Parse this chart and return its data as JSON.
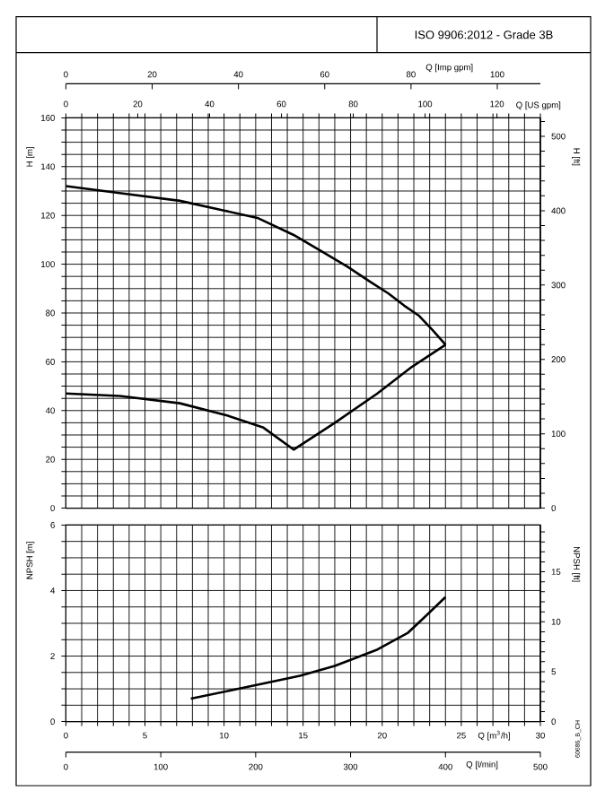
{
  "chart_data": [
    {
      "type": "line",
      "title": "ISO 9906:2012 - Grade 3B",
      "ylabel": "H [m]",
      "y2label": "H [ft]",
      "xlabel": "Q [US gpm]",
      "x2label": "Q [Imp gpm]",
      "xlim": [
        0,
        132.09
      ],
      "ylim": [
        0,
        160
      ],
      "y2lim": [
        0,
        524.9
      ],
      "x2lim": [
        0,
        109.99
      ],
      "grid": true,
      "xticks": [
        0,
        {
          "value": 4.403,
          "label": null
        },
        {
          "value": 8.806,
          "label": null
        },
        {
          "value": 13.209,
          "label": null
        },
        {
          "value": 17.612,
          "label": null
        },
        20,
        {
          "value": 22.015,
          "label": null
        },
        {
          "value": 26.418,
          "label": null
        },
        {
          "value": 30.821,
          "label": null
        },
        {
          "value": 35.224,
          "label": null
        },
        {
          "value": 39.627,
          "label": null
        },
        40,
        {
          "value": 44.03,
          "label": null
        },
        {
          "value": 48.433,
          "label": null
        },
        {
          "value": 52.836,
          "label": null
        },
        {
          "value": 57.239,
          "label": null
        },
        60,
        {
          "value": 61.642,
          "label": null
        },
        {
          "value": 66.045,
          "label": null
        },
        {
          "value": 70.448,
          "label": null
        },
        {
          "value": 74.851,
          "label": null
        },
        {
          "value": 79.254,
          "label": null
        },
        80,
        {
          "value": 83.657,
          "label": null
        },
        {
          "value": 88.06,
          "label": null
        },
        {
          "value": 92.463,
          "label": null
        },
        {
          "value": 96.866,
          "label": null
        },
        100,
        {
          "value": 101.269,
          "label": null
        },
        {
          "value": 105.672,
          "label": null
        },
        {
          "value": 110.075,
          "label": null
        },
        {
          "value": 114.478,
          "label": null
        },
        {
          "value": 118.881,
          "label": null
        },
        120,
        {
          "value": 123.284,
          "label": null
        },
        {
          "value": 127.687,
          "label": null
        },
        {
          "value": 132.09,
          "label": null
        }
      ],
      "yticks": [
        0,
        {
          "value": 5,
          "label": null
        },
        {
          "value": 10,
          "label": null
        },
        {
          "value": 15,
          "label": null
        },
        20,
        {
          "value": 25,
          "label": null
        },
        {
          "value": 30,
          "label": null
        },
        {
          "value": 35,
          "label": null
        },
        40,
        {
          "value": 45,
          "label": null
        },
        {
          "value": 50,
          "label": null
        },
        {
          "value": 55,
          "label": null
        },
        60,
        {
          "value": 65,
          "label": null
        },
        {
          "value": 70,
          "label": null
        },
        {
          "value": 75,
          "label": null
        },
        80,
        {
          "value": 85,
          "label": null
        },
        {
          "value": 90,
          "label": null
        },
        {
          "value": 95,
          "label": null
        },
        100,
        {
          "value": 105,
          "label": null
        },
        {
          "value": 110,
          "label": null
        },
        {
          "value": 115,
          "label": null
        },
        120,
        {
          "value": 125,
          "label": null
        },
        {
          "value": 130,
          "label": null
        },
        {
          "value": 135,
          "label": null
        },
        140,
        {
          "value": 145,
          "label": null
        },
        {
          "value": 150,
          "label": null
        },
        {
          "value": 155,
          "label": null
        },
        160
      ],
      "y2ticks": [
        0,
        {
          "value": 20,
          "label": null
        },
        {
          "value": 40,
          "label": null
        },
        {
          "value": 60,
          "label": null
        },
        {
          "value": 80,
          "label": null
        },
        100,
        {
          "value": 120,
          "label": null
        },
        {
          "value": 140,
          "label": null
        },
        {
          "value": 160,
          "label": null
        },
        {
          "value": 180,
          "label": null
        },
        200,
        {
          "value": 220,
          "label": null
        },
        {
          "value": 240,
          "label": null
        },
        {
          "value": 260,
          "label": null
        },
        {
          "value": 280,
          "label": null
        },
        300,
        {
          "value": 320,
          "label": null
        },
        {
          "value": 340,
          "label": null
        },
        {
          "value": 360,
          "label": null
        },
        {
          "value": 380,
          "label": null
        },
        400,
        {
          "value": 420,
          "label": null
        },
        {
          "value": 440,
          "label": null
        },
        {
          "value": 460,
          "label": null
        },
        {
          "value": 480,
          "label": null
        },
        500,
        {
          "value": 520,
          "label": null
        }
      ],
      "x2ticks": [
        0,
        20,
        40,
        60,
        80,
        100
      ],
      "series": [
        {
          "color": "#000000",
          "x": [
            0,
            15.9,
            31.7,
            44.0,
            53.3,
            63.4,
            70.4,
            78.4,
            84.5,
            89.8,
            94.2,
            98.2,
            102.1,
            105.7
          ],
          "values": [
            132,
            129,
            126,
            122,
            119,
            112,
            106,
            99,
            93,
            88,
            83,
            79,
            73,
            67
          ]
        },
        {
          "color": "#000000",
          "x": [
            0,
            15.0,
            31.7,
            44.9,
            55.0,
            63.4,
            74.9,
            86.7,
            96.4,
            105.7
          ],
          "values": [
            47,
            46,
            43,
            38,
            33,
            24,
            35,
            47,
            58,
            67
          ]
        }
      ]
    },
    {
      "type": "line",
      "ylabel": "NPSH [m]",
      "y2label": "NPSH [ft]",
      "xlabel": "Q [m$^{3}$/h]",
      "x2label": "Q [l/min]",
      "xlim": [
        0,
        30
      ],
      "ylim": [
        0,
        6
      ],
      "y2lim": [
        0,
        19.69
      ],
      "x2lim": [
        0,
        500
      ],
      "grid": true,
      "annotations": [
        "60686_B_CH"
      ],
      "xticks": [
        0,
        {
          "value": 1,
          "label": null
        },
        {
          "value": 2,
          "label": null
        },
        {
          "value": 3,
          "label": null
        },
        {
          "value": 4,
          "label": null
        },
        5,
        {
          "value": 6,
          "label": null
        },
        {
          "value": 7,
          "label": null
        },
        {
          "value": 8,
          "label": null
        },
        {
          "value": 9,
          "label": null
        },
        10,
        {
          "value": 11,
          "label": null
        },
        {
          "value": 12,
          "label": null
        },
        {
          "value": 13,
          "label": null
        },
        {
          "value": 14,
          "label": null
        },
        15,
        {
          "value": 16,
          "label": null
        },
        {
          "value": 17,
          "label": null
        },
        {
          "value": 18,
          "label": null
        },
        {
          "value": 19,
          "label": null
        },
        20,
        {
          "value": 21,
          "label": null
        },
        {
          "value": 22,
          "label": null
        },
        {
          "value": 23,
          "label": null
        },
        {
          "value": 24,
          "label": null
        },
        25,
        {
          "value": 26,
          "label": null
        },
        {
          "value": 27,
          "label": null
        },
        {
          "value": 28,
          "label": null
        },
        {
          "value": 29,
          "label": null
        },
        30
      ],
      "yticks": [
        0,
        {
          "value": 0.5,
          "label": null
        },
        {
          "value": 1,
          "label": null
        },
        {
          "value": 1.5,
          "label": null
        },
        2,
        {
          "value": 2.5,
          "label": null
        },
        {
          "value": 3,
          "label": null
        },
        {
          "value": 3.5,
          "label": null
        },
        4,
        {
          "value": 4.5,
          "label": null
        },
        {
          "value": 5,
          "label": null
        },
        {
          "value": 5.5,
          "label": null
        },
        6
      ],
      "y2ticks": [
        0,
        {
          "value": 1,
          "label": null
        },
        {
          "value": 2,
          "label": null
        },
        {
          "value": 3,
          "label": null
        },
        {
          "value": 4,
          "label": null
        },
        5,
        {
          "value": 6,
          "label": null
        },
        {
          "value": 7,
          "label": null
        },
        {
          "value": 8,
          "label": null
        },
        {
          "value": 9,
          "label": null
        },
        10,
        {
          "value": 11,
          "label": null
        },
        {
          "value": 12,
          "label": null
        },
        {
          "value": 13,
          "label": null
        },
        {
          "value": 14,
          "label": null
        },
        15,
        {
          "value": 16,
          "label": null
        },
        {
          "value": 17,
          "label": null
        },
        {
          "value": 18,
          "label": null
        },
        {
          "value": 19,
          "label": null
        }
      ],
      "x2ticks": [
        0,
        100,
        200,
        300,
        400,
        500
      ],
      "series": [
        {
          "color": "#000000",
          "x": [
            7.9,
            10.9,
            14.8,
            17,
            19.7,
            21.6,
            22.7,
            24
          ],
          "values": [
            0.7,
            1.0,
            1.4,
            1.7,
            2.2,
            2.7,
            3.2,
            3.8
          ]
        }
      ]
    }
  ]
}
